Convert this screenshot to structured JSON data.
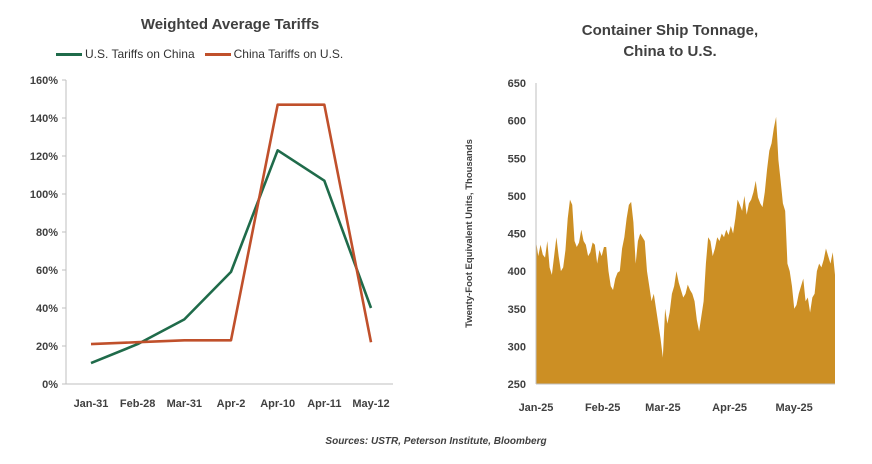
{
  "source": "Sources: USTR, Peterson Institute, Bloomberg",
  "chart_data": [
    {
      "type": "line",
      "title": "Weighted Average Tariffs",
      "categories": [
        "Jan-31",
        "Feb-28",
        "Mar-31",
        "Apr-2",
        "Apr-10",
        "Apr-11",
        "May-12"
      ],
      "series": [
        {
          "name": "U.S. Tariffs on China",
          "color": "#1f6b4a",
          "values": [
            11,
            21,
            34,
            59,
            123,
            107,
            40
          ]
        },
        {
          "name": "China Tariffs on U.S.",
          "color": "#c0502b",
          "values": [
            21,
            22,
            23,
            23,
            147,
            147,
            22
          ]
        }
      ],
      "ylim": [
        0,
        160
      ],
      "yticks": [
        "0%",
        "20%",
        "40%",
        "60%",
        "80%",
        "100%",
        "120%",
        "140%",
        "160%"
      ],
      "legend": "top",
      "grid": false
    },
    {
      "type": "area",
      "title": "Container Ship Tonnage,\nChina to U.S.",
      "ylabel": "Twenty-Foot Equivalent Units, Thousands",
      "color": "#cc8f24",
      "ylim": [
        250,
        650
      ],
      "yticks": [
        250,
        300,
        350,
        400,
        450,
        500,
        550,
        600,
        650
      ],
      "xticks": [
        "Jan-25",
        "Feb-25",
        "Mar-25",
        "Apr-25",
        "May-25"
      ],
      "x_start": "2025-01-01",
      "x_end": "2025-05-20",
      "values": [
        440,
        420,
        435,
        422,
        418,
        440,
        405,
        395,
        420,
        445,
        420,
        400,
        405,
        428,
        470,
        495,
        488,
        440,
        432,
        438,
        455,
        440,
        435,
        420,
        425,
        438,
        435,
        410,
        428,
        420,
        432,
        432,
        400,
        380,
        375,
        390,
        398,
        400,
        430,
        445,
        470,
        488,
        492,
        465,
        410,
        440,
        450,
        445,
        440,
        400,
        380,
        360,
        370,
        350,
        330,
        310,
        285,
        350,
        330,
        345,
        370,
        380,
        400,
        385,
        375,
        365,
        370,
        382,
        375,
        370,
        360,
        335,
        320,
        340,
        360,
        410,
        445,
        440,
        420,
        430,
        445,
        440,
        450,
        445,
        455,
        448,
        460,
        450,
        470,
        495,
        488,
        480,
        500,
        475,
        490,
        495,
        505,
        520,
        498,
        490,
        485,
        505,
        535,
        560,
        570,
        590,
        605,
        548,
        520,
        490,
        480,
        410,
        400,
        380,
        350,
        355,
        370,
        380,
        390,
        360,
        365,
        345,
        365,
        370,
        400,
        410,
        405,
        415,
        430,
        420,
        410,
        425,
        395
      ]
    }
  ]
}
